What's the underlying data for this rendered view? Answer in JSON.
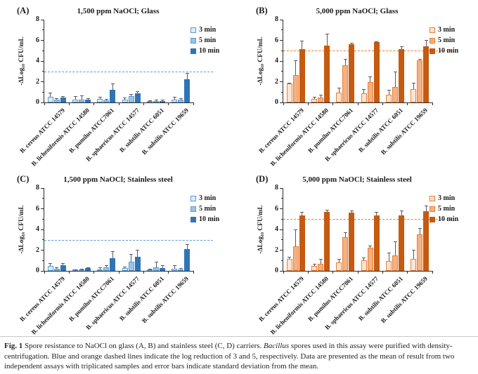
{
  "figure": {
    "caption": {
      "label": "Fig. 1",
      "text_before_italic": " Spore resistance to NaOCl on glass (A, B) and stainless steel (C, D) carriers. ",
      "italic_word": "Bacillus",
      "text_after_italic": " spores used in this assay were purified with density-centrifugation. Blue and orange dashed lines indicate the log reduction of 3 and 5, respectively. Data are presented as the mean of result from two independent assays with triplicated samples and error bars indicate standard deviation from the mean."
    },
    "colors": {
      "blue_light": "#DEEBF7",
      "blue_medium": "#9DC3E6",
      "blue_dark": "#2E75B6",
      "blue_border": "#5B9BD5",
      "orange_light": "#FBE5D6",
      "orange_medium": "#F4B183",
      "orange_dark": "#C55A11",
      "orange_border": "#ED7D31",
      "error_bar": "#5a5a5a"
    }
  },
  "chart_data": [
    {
      "type": "bar",
      "panel_label": "(A)",
      "title": "1,500 ppm NaOCl; Glass",
      "ylabel": "-ΔLog₁₀ CFU/mL",
      "ylim": [
        0,
        8
      ],
      "yticks": [
        0,
        2,
        4,
        6,
        8
      ],
      "legend_position": "right",
      "grid": false,
      "threshold": {
        "value": 3,
        "color": "#5B9BD5"
      },
      "categories": [
        "B. cereus ATCC 14579",
        "B. licheniformis ATCC 14580",
        "B. pumilus ATCC7061",
        "B. sphaericus ATCC 14577",
        "B. subtilis ATCC 6051",
        "B. subtilis ATCC 19659"
      ],
      "series": [
        {
          "name": "3 min",
          "fill": "#DEEBF7",
          "border": "#5B9BD5",
          "values": [
            0.55,
            0.25,
            0.35,
            0.3,
            0.1,
            0.3
          ],
          "errors": [
            0.3,
            0.3,
            0.12,
            0.1,
            0.05,
            0.15
          ]
        },
        {
          "name": "5 min",
          "fill": "#9DC3E6",
          "border": "#5B9BD5",
          "values": [
            0.28,
            0.3,
            0.2,
            0.62,
            0.15,
            0.25
          ],
          "errors": [
            0.08,
            0.32,
            0.1,
            0.1,
            0.06,
            0.08
          ]
        },
        {
          "name": "10 min",
          "fill": "#2E75B6",
          "border": "#2E75B6",
          "values": [
            0.45,
            0.3,
            1.25,
            0.9,
            0.17,
            2.25
          ],
          "errors": [
            0.1,
            0.05,
            0.5,
            0.15,
            0.05,
            0.5
          ]
        }
      ]
    },
    {
      "type": "bar",
      "panel_label": "(B)",
      "title": "5,000 ppm NaOCl; Glass",
      "ylabel": "-ΔLog₁₀ CFU/mL",
      "ylim": [
        0,
        8
      ],
      "yticks": [
        0,
        2,
        4,
        6,
        8
      ],
      "legend_position": "right",
      "grid": false,
      "threshold": {
        "value": 5,
        "color": "#ED7D31"
      },
      "categories": [
        "B. cereus ATCC 14579",
        "B. licheniformis ATCC 14580",
        "B. pumilus ATCC7061",
        "B. sphaericus ATCC 14577",
        "B. subtilis ATCC 6051",
        "B. subtilis ATCC 19659"
      ],
      "series": [
        {
          "name": "3 min",
          "fill": "#FBE5D6",
          "border": "#ED7D31",
          "values": [
            1.8,
            0.35,
            0.95,
            0.9,
            0.75,
            1.3
          ],
          "errors": [
            0.05,
            0.1,
            0.4,
            0.35,
            0.4,
            0.55
          ]
        },
        {
          "name": "5 min",
          "fill": "#F4B183",
          "border": "#ED7D31",
          "values": [
            2.65,
            0.45,
            3.6,
            1.95,
            1.5,
            4.05
          ],
          "errors": [
            1.35,
            0.25,
            0.55,
            0.5,
            1.45,
            0.1
          ]
        },
        {
          "name": "10 min",
          "fill": "#C55A11",
          "border": "#C55A11",
          "values": [
            5.15,
            5.5,
            5.6,
            5.8,
            5.15,
            5.45
          ],
          "errors": [
            0.75,
            1.1,
            0.1,
            0.05,
            0.2,
            0.5
          ]
        }
      ]
    },
    {
      "type": "bar",
      "panel_label": "(C)",
      "title": "1,500 ppm NaOCl; Stainless steel",
      "ylabel": "-ΔLog₁₀ CFU/mL",
      "ylim": [
        0,
        8
      ],
      "yticks": [
        0,
        2,
        4,
        6,
        8
      ],
      "legend_position": "right",
      "grid": false,
      "threshold": {
        "value": 3,
        "color": "#5B9BD5"
      },
      "categories": [
        "B. cereus ATCC 14579",
        "B. licheniformis ATCC 14580",
        "B. pumilus ATCC7061",
        "B. sphaericus ATCC 14577",
        "B. subtilis ATCC 6051",
        "B. subtilis ATCC 19659"
      ],
      "series": [
        {
          "name": "3 min",
          "fill": "#DEEBF7",
          "border": "#5B9BD5",
          "values": [
            0.5,
            0.05,
            0.15,
            0.25,
            0.1,
            0.2
          ],
          "errors": [
            0.2,
            0.03,
            0.1,
            0.1,
            0.05,
            0.3
          ]
        },
        {
          "name": "5 min",
          "fill": "#9DC3E6",
          "border": "#5B9BD5",
          "values": [
            0.2,
            0.1,
            0.35,
            0.85,
            0.35,
            0.15
          ],
          "errors": [
            0.06,
            0.05,
            0.15,
            0.7,
            0.45,
            0.05
          ]
        },
        {
          "name": "10 min",
          "fill": "#2E75B6",
          "border": "#2E75B6",
          "values": [
            0.55,
            0.25,
            1.2,
            1.35,
            0.25,
            2.1
          ],
          "errors": [
            0.1,
            0.05,
            0.6,
            0.65,
            0.25,
            0.4
          ]
        }
      ]
    },
    {
      "type": "bar",
      "panel_label": "(D)",
      "title": "5,000 ppm NaOCl; Stainless steel",
      "ylabel": "-ΔLog₁₀ CFU/mL",
      "ylim": [
        0,
        8
      ],
      "yticks": [
        0,
        2,
        4,
        6,
        8
      ],
      "legend_position": "right",
      "grid": false,
      "threshold": {
        "value": 5,
        "color": "#ED7D31"
      },
      "categories": [
        "B. cereus ATCC 14579",
        "B. licheniformis ATCC 14580",
        "B. pumilus ATCC7061",
        "B. sphaericus ATCC 14577",
        "B. subtilis ATCC 6051",
        "B. subtilis ATCC 19659"
      ],
      "series": [
        {
          "name": "3 min",
          "fill": "#FBE5D6",
          "border": "#ED7D31",
          "values": [
            1.15,
            0.5,
            0.8,
            1.0,
            0.95,
            1.15
          ],
          "errors": [
            0.12,
            0.1,
            0.28,
            0.25,
            0.75,
            0.8
          ]
        },
        {
          "name": "5 min",
          "fill": "#F4B183",
          "border": "#ED7D31",
          "values": [
            2.35,
            0.7,
            3.25,
            2.25,
            1.5,
            3.5
          ],
          "errors": [
            1.6,
            0.4,
            0.4,
            0.15,
            1.25,
            0.55
          ]
        },
        {
          "name": "10 min",
          "fill": "#C55A11",
          "border": "#C55A11",
          "values": [
            5.35,
            5.7,
            5.65,
            5.35,
            5.35,
            5.75
          ],
          "errors": [
            0.25,
            0.1,
            0.1,
            0.3,
            0.4,
            0.5
          ]
        }
      ]
    }
  ]
}
